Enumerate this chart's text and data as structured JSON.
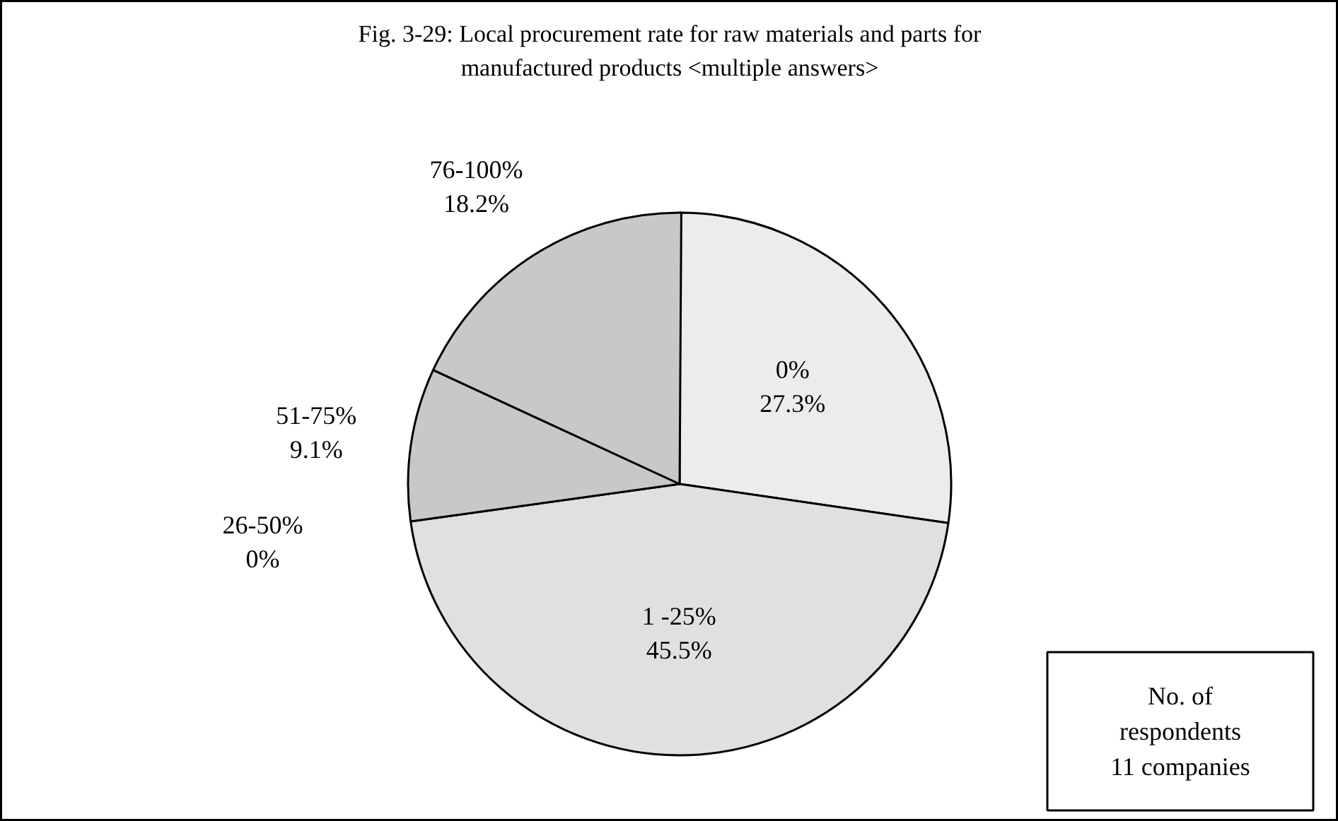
{
  "chart_data": {
    "type": "pie",
    "title": "Fig. 3-29: Local procurement rate for raw materials and parts for\nmanufactured products <multiple answers>",
    "categories": [
      "0%",
      "1 -25%",
      "26-50%",
      "51-75%",
      "76-100%"
    ],
    "values": [
      27.3,
      45.5,
      0,
      9.1,
      18.2
    ],
    "value_labels": [
      "27.3%",
      "45.5%",
      "0%",
      "9.1%",
      "18.2%"
    ],
    "colors": [
      "#ececec",
      "#e0e0e0",
      "#ffffff",
      "#c8c8c8",
      "#c8c8c8"
    ],
    "annotations": [
      "No. of\nrespondents\n11 companies"
    ]
  }
}
